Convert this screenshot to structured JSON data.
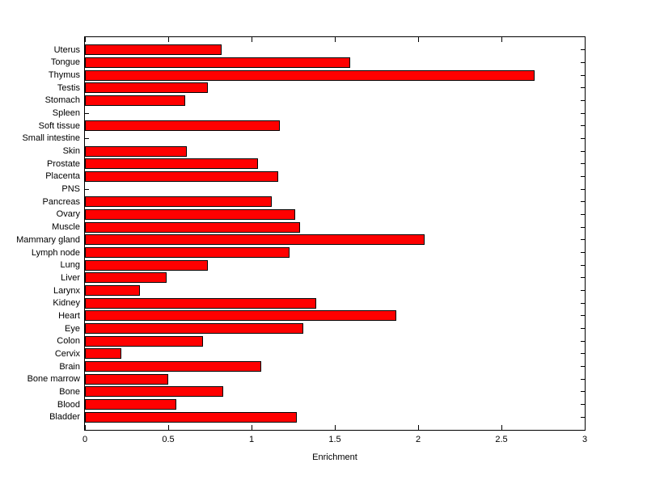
{
  "figure": {
    "background": "#ffffff"
  },
  "chart_data": {
    "type": "bar",
    "orientation": "horizontal",
    "title": "",
    "xlabel": "Enrichment",
    "ylabel": "",
    "xlim": [
      0,
      3
    ],
    "xticks": [
      "0",
      "0.5",
      "1",
      "1.5",
      "2",
      "2.5",
      "3"
    ],
    "grid": false,
    "bar_fill": "#ff0000",
    "bar_edge": "#000000",
    "categories": [
      "Uterus",
      "Tongue",
      "Thymus",
      "Testis",
      "Stomach",
      "Spleen",
      "Soft tissue",
      "Small intestine",
      "Skin",
      "Prostate",
      "Placenta",
      "PNS",
      "Pancreas",
      "Ovary",
      "Muscle",
      "Mammary gland",
      "Lymph node",
      "Lung",
      "Liver",
      "Larynx",
      "Kidney",
      "Heart",
      "Eye",
      "Colon",
      "Cervix",
      "Brain",
      "Bone marrow",
      "Bone",
      "Blood",
      "Bladder"
    ],
    "values": [
      0.82,
      1.59,
      2.7,
      0.74,
      0.6,
      0,
      1.17,
      0,
      0.61,
      1.04,
      1.16,
      0,
      1.12,
      1.26,
      1.29,
      2.04,
      1.23,
      0.74,
      0.49,
      0.33,
      1.39,
      1.87,
      1.31,
      0.71,
      0.22,
      1.06,
      0.5,
      0.83,
      0.55,
      1.27
    ]
  }
}
